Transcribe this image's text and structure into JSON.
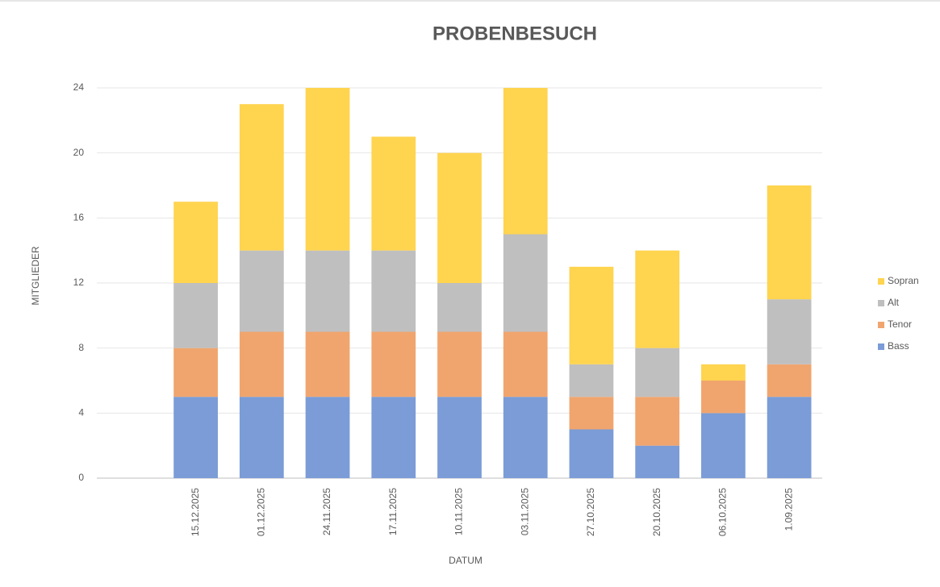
{
  "chart_data": {
    "type": "stacked-bar",
    "title": "PROBENBESUCH",
    "x_label": "DATUM",
    "y_label": "MITGLIEDER",
    "categories": [
      null,
      "15.12.2025",
      "01.12.2025",
      "24.11.2025",
      "17.11.2025",
      "10.11.2025",
      "03.11.2025",
      "27.10.2025",
      "20.10.2025",
      "06.10.2025",
      "1.09.2025"
    ],
    "series": [
      {
        "name": "Bass",
        "color": "#7b9cd6",
        "values": [
          null,
          5,
          5,
          5,
          5,
          5,
          5,
          3,
          2,
          4,
          5
        ]
      },
      {
        "name": "Tenor",
        "color": "#f0a56e",
        "values": [
          null,
          3,
          4,
          4,
          4,
          4,
          4,
          2,
          3,
          2,
          2
        ]
      },
      {
        "name": "Alt",
        "color": "#bfbfbf",
        "values": [
          null,
          4,
          5,
          5,
          5,
          3,
          6,
          2,
          3,
          0,
          4
        ]
      },
      {
        "name": "Sopran",
        "color": "#ffd44f",
        "values": [
          null,
          5,
          9,
          10,
          7,
          8,
          9,
          6,
          6,
          1,
          7
        ]
      }
    ],
    "ylim": [
      0,
      24
    ],
    "yticks": [
      0,
      4,
      8,
      12,
      16,
      20,
      24
    ],
    "grid": true,
    "legend": "right"
  }
}
